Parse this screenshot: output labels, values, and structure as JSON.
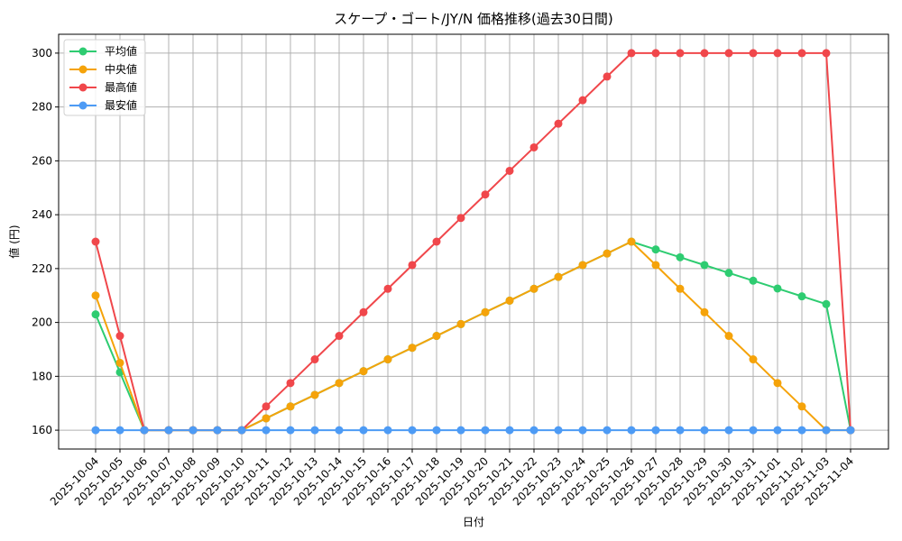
{
  "chart_data": {
    "type": "line",
    "title": "スケープ・ゴート/JY/N 価格推移(過去30日間)",
    "xlabel": "日付",
    "ylabel": "値 (円)",
    "ylim": [
      153,
      307
    ],
    "yticks": [
      160,
      180,
      200,
      220,
      240,
      260,
      280,
      300
    ],
    "grid": true,
    "legend_position": "upper left",
    "x": [
      "2025-10-04",
      "2025-10-05",
      "2025-10-06",
      "2025-10-07",
      "2025-10-08",
      "2025-10-09",
      "2025-10-10",
      "2025-10-11",
      "2025-10-12",
      "2025-10-13",
      "2025-10-14",
      "2025-10-15",
      "2025-10-16",
      "2025-10-17",
      "2025-10-18",
      "2025-10-19",
      "2025-10-20",
      "2025-10-21",
      "2025-10-22",
      "2025-10-23",
      "2025-10-24",
      "2025-10-25",
      "2025-10-26",
      "2025-10-27",
      "2025-10-28",
      "2025-10-29",
      "2025-10-30",
      "2025-10-31",
      "2025-11-01",
      "2025-11-02",
      "2025-11-03",
      "2025-11-04"
    ],
    "series": [
      {
        "name": "平均値",
        "color": "#2ecc71",
        "values": [
          203,
          181.5,
          160,
          160,
          160,
          160,
          160,
          164.4,
          168.8,
          173.1,
          177.5,
          181.9,
          186.3,
          190.6,
          195,
          199.4,
          203.8,
          208.1,
          212.5,
          216.9,
          221.3,
          225.6,
          230,
          227.1,
          224.2,
          221.3,
          218.4,
          215.5,
          212.6,
          209.7,
          206.8,
          160
        ]
      },
      {
        "name": "中央値",
        "color": "#f5a30a",
        "values": [
          210,
          185,
          160,
          160,
          160,
          160,
          160,
          164.4,
          168.8,
          173.1,
          177.5,
          181.9,
          186.3,
          190.6,
          195,
          199.4,
          203.8,
          208.1,
          212.5,
          216.9,
          221.3,
          225.6,
          230,
          221.3,
          212.5,
          203.8,
          195,
          186.3,
          177.5,
          168.8,
          160,
          160
        ]
      },
      {
        "name": "最高値",
        "color": "#f0474b",
        "values": [
          230,
          195,
          160,
          160,
          160,
          160,
          160,
          168.8,
          177.5,
          186.3,
          195,
          203.8,
          212.5,
          221.3,
          230,
          238.8,
          247.5,
          256.3,
          265,
          273.8,
          282.5,
          291.3,
          300,
          300,
          300,
          300,
          300,
          300,
          300,
          300,
          300,
          160
        ]
      },
      {
        "name": "最安値",
        "color": "#4d9bf5",
        "values": [
          160,
          160,
          160,
          160,
          160,
          160,
          160,
          160,
          160,
          160,
          160,
          160,
          160,
          160,
          160,
          160,
          160,
          160,
          160,
          160,
          160,
          160,
          160,
          160,
          160,
          160,
          160,
          160,
          160,
          160,
          160,
          160
        ]
      }
    ]
  },
  "colors": {
    "grid": "#b0b0b0",
    "axis": "#000000"
  }
}
